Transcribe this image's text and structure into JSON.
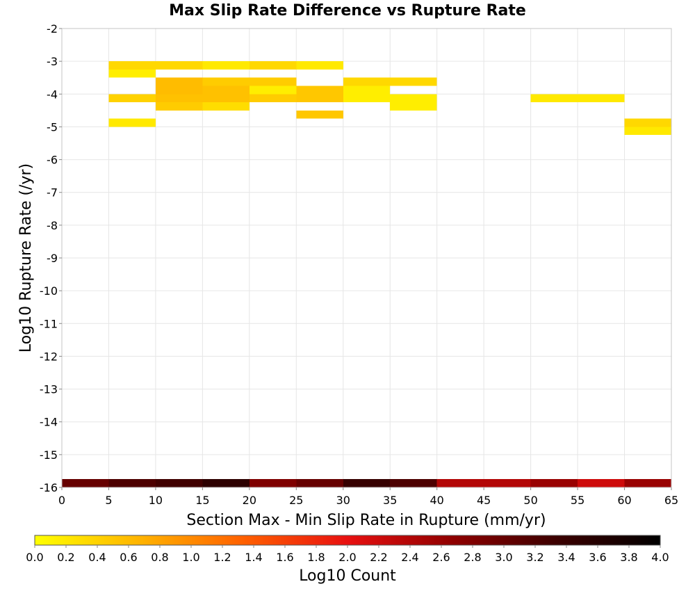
{
  "chart_data": {
    "type": "heatmap",
    "title": "Max Slip Rate Difference vs Rupture Rate",
    "xlabel": "Section Max - Min Slip Rate in Rupture (mm/yr)",
    "ylabel": "Log10 Rupture Rate (/yr)",
    "xlim": [
      0,
      65
    ],
    "ylim": [
      -16,
      -2
    ],
    "x_ticks": [
      "0",
      "5",
      "10",
      "15",
      "20",
      "25",
      "30",
      "35",
      "40",
      "45",
      "50",
      "55",
      "60",
      "65"
    ],
    "y_ticks": [
      "-2",
      "-3",
      "-4",
      "-5",
      "-6",
      "-7",
      "-8",
      "-9",
      "-10",
      "-11",
      "-12",
      "-13",
      "-14",
      "-15",
      "-16"
    ],
    "x_bin_width": 5,
    "y_bin_height": 0.25,
    "grid": true,
    "colorbar": {
      "label": "Log10 Count",
      "range": [
        0.0,
        4.0
      ],
      "ticks": [
        "0.0",
        "0.2",
        "0.4",
        "0.6",
        "0.8",
        "1.0",
        "1.2",
        "1.4",
        "1.6",
        "1.8",
        "2.0",
        "2.2",
        "2.4",
        "2.6",
        "2.8",
        "3.0",
        "3.2",
        "3.4",
        "3.6",
        "3.8",
        "4.0"
      ],
      "colors": [
        "#ffff00",
        "#ffb400",
        "#ff6000",
        "#e81010",
        "#900000",
        "#3c0000",
        "#000000"
      ],
      "placement": "bottom"
    },
    "cells": [
      {
        "x": 5,
        "y": -3.125,
        "v": 0.35
      },
      {
        "x": 10,
        "y": -3.125,
        "v": 0.35
      },
      {
        "x": 15,
        "y": -3.125,
        "v": 0.2
      },
      {
        "x": 20,
        "y": -3.125,
        "v": 0.35
      },
      {
        "x": 25,
        "y": -3.125,
        "v": 0.2
      },
      {
        "x": 5,
        "y": -3.375,
        "v": 0.15
      },
      {
        "x": 10,
        "y": -3.625,
        "v": 0.6
      },
      {
        "x": 15,
        "y": -3.625,
        "v": 0.45
      },
      {
        "x": 20,
        "y": -3.625,
        "v": 0.45
      },
      {
        "x": 30,
        "y": -3.625,
        "v": 0.35
      },
      {
        "x": 35,
        "y": -3.625,
        "v": 0.35
      },
      {
        "x": 10,
        "y": -3.875,
        "v": 0.6
      },
      {
        "x": 15,
        "y": -3.875,
        "v": 0.55
      },
      {
        "x": 20,
        "y": -3.875,
        "v": 0.15
      },
      {
        "x": 25,
        "y": -3.875,
        "v": 0.5
      },
      {
        "x": 30,
        "y": -3.875,
        "v": 0.15
      },
      {
        "x": 5,
        "y": -4.125,
        "v": 0.4
      },
      {
        "x": 10,
        "y": -4.125,
        "v": 0.55
      },
      {
        "x": 15,
        "y": -4.125,
        "v": 0.55
      },
      {
        "x": 20,
        "y": -4.125,
        "v": 0.45
      },
      {
        "x": 25,
        "y": -4.125,
        "v": 0.5
      },
      {
        "x": 30,
        "y": -4.125,
        "v": 0.15
      },
      {
        "x": 35,
        "y": -4.125,
        "v": 0.15
      },
      {
        "x": 50,
        "y": -4.125,
        "v": 0.2
      },
      {
        "x": 55,
        "y": -4.125,
        "v": 0.2
      },
      {
        "x": 10,
        "y": -4.375,
        "v": 0.45
      },
      {
        "x": 15,
        "y": -4.375,
        "v": 0.3
      },
      {
        "x": 35,
        "y": -4.375,
        "v": 0.15
      },
      {
        "x": 25,
        "y": -4.625,
        "v": 0.5
      },
      {
        "x": 5,
        "y": -4.875,
        "v": 0.2
      },
      {
        "x": 60,
        "y": -4.875,
        "v": 0.35
      },
      {
        "x": 60,
        "y": -5.125,
        "v": 0.2
      },
      {
        "x": 0,
        "y": -15.875,
        "v": 3.0
      },
      {
        "x": 5,
        "y": -15.875,
        "v": 3.2
      },
      {
        "x": 10,
        "y": -15.875,
        "v": 3.3
      },
      {
        "x": 15,
        "y": -15.875,
        "v": 3.5
      },
      {
        "x": 20,
        "y": -15.875,
        "v": 2.8
      },
      {
        "x": 25,
        "y": -15.875,
        "v": 3.0
      },
      {
        "x": 30,
        "y": -15.875,
        "v": 3.4
      },
      {
        "x": 35,
        "y": -15.875,
        "v": 3.2
      },
      {
        "x": 40,
        "y": -15.875,
        "v": 2.4
      },
      {
        "x": 45,
        "y": -15.875,
        "v": 2.4
      },
      {
        "x": 50,
        "y": -15.875,
        "v": 2.6
      },
      {
        "x": 55,
        "y": -15.875,
        "v": 2.2
      },
      {
        "x": 60,
        "y": -15.875,
        "v": 2.6
      }
    ]
  }
}
